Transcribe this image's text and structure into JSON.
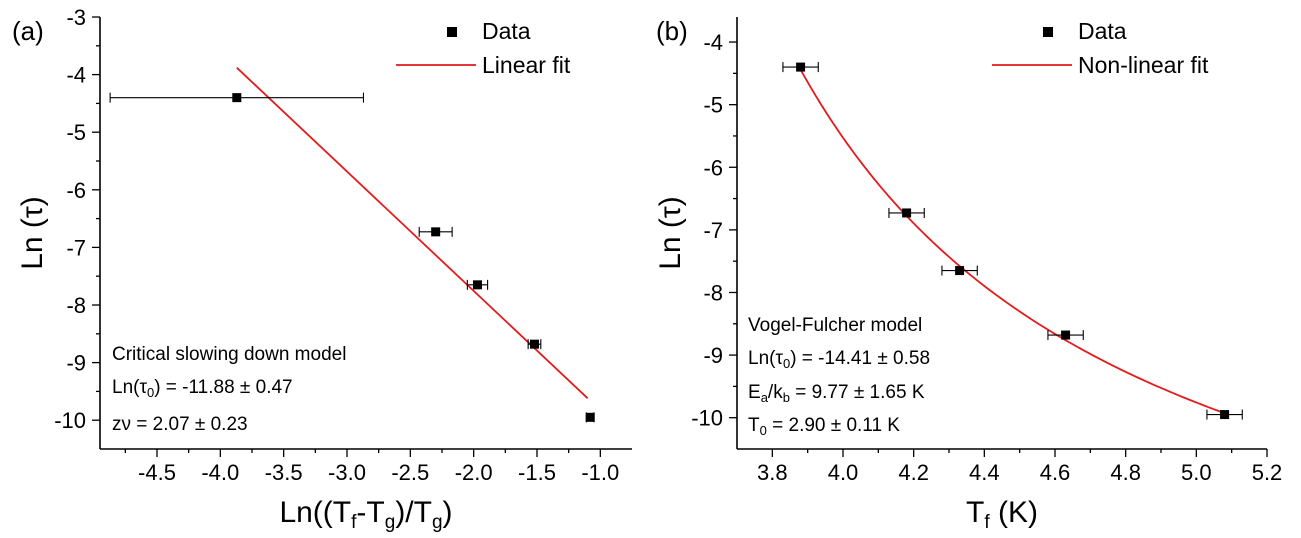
{
  "chart_data": [
    {
      "type": "scatter",
      "panel_label": "(a)",
      "ylabel": "Ln (τ)",
      "xlabel_parts": [
        "Ln((T",
        "f",
        "-T",
        "g",
        ")/T",
        "g",
        ")"
      ],
      "xlim": [
        -4.95,
        -0.75
      ],
      "ylim": [
        -10.5,
        -3.0
      ],
      "x_ticks": [
        -4.5,
        -4.0,
        -3.5,
        -3.0,
        -2.5,
        -2.0,
        -1.5,
        -1.0
      ],
      "x_tick_labels": [
        "-4.5",
        "-4.0",
        "-3.5",
        "-3.0",
        "-2.5",
        "-2.0",
        "-1.5",
        "-1.0"
      ],
      "y_ticks": [
        -10,
        -9,
        -8,
        -7,
        -6,
        -5,
        -4,
        -3
      ],
      "y_tick_labels": [
        "-10",
        "-9",
        "-8",
        "-7",
        "-6",
        "-5",
        "-4",
        "-3"
      ],
      "series": [
        {
          "name": "Data",
          "x": [
            -3.87,
            -2.3,
            -1.97,
            -1.52,
            -1.08
          ],
          "y": [
            -4.4,
            -6.73,
            -7.65,
            -8.68,
            -9.95
          ],
          "xerr": [
            1.0,
            0.13,
            0.08,
            0.05,
            0.03
          ]
        },
        {
          "name": "Linear fit",
          "line": [
            [
              -3.87,
              -3.88
            ],
            [
              -1.1,
              -9.62
            ]
          ]
        }
      ],
      "legend": {
        "placement": "top-right",
        "entries": [
          "Data",
          "Linear fit"
        ]
      },
      "annotations": [
        {
          "text": "Critical slowing down model"
        },
        {
          "parts": [
            "Ln(τ",
            "0",
            ") = -11.88 ± 0.47"
          ]
        },
        {
          "text": "zν = 2.07 ± 0.23"
        }
      ]
    },
    {
      "type": "scatter",
      "panel_label": "(b)",
      "ylabel": "Ln (τ)",
      "xlabel_parts": [
        "T",
        "f",
        " (K)"
      ],
      "xlim": [
        3.7,
        5.2
      ],
      "ylim": [
        -10.5,
        -3.6
      ],
      "x_ticks": [
        3.8,
        4.0,
        4.2,
        4.4,
        4.6,
        4.8,
        5.0,
        5.2
      ],
      "x_tick_labels": [
        "3.8",
        "4.0",
        "4.2",
        "4.4",
        "4.6",
        "4.8",
        "5.0",
        "5.2"
      ],
      "y_ticks": [
        -10,
        -9,
        -8,
        -7,
        -6,
        -5,
        -4
      ],
      "y_tick_labels": [
        "-10",
        "-9",
        "-8",
        "-7",
        "-6",
        "-5",
        "-4"
      ],
      "series": [
        {
          "name": "Data",
          "x": [
            3.88,
            4.18,
            4.33,
            4.63,
            5.08
          ],
          "y": [
            -4.4,
            -6.73,
            -7.65,
            -8.68,
            -9.95
          ],
          "xerr": [
            0.05,
            0.05,
            0.05,
            0.05,
            0.05
          ]
        },
        {
          "name": "Non-linear fit",
          "model": {
            "ln_tau0": -14.41,
            "Ea_over_kb": 9.77,
            "T0": 2.9
          },
          "x_range": [
            3.88,
            5.08
          ]
        }
      ],
      "legend": {
        "placement": "top-right",
        "entries": [
          "Data",
          "Non-linear fit"
        ]
      },
      "annotations": [
        {
          "text": "Vogel-Fulcher model"
        },
        {
          "parts": [
            "Ln(τ",
            "0",
            ") = -14.41 ± 0.58"
          ]
        },
        {
          "parts": [
            "E",
            "a",
            "/k",
            "b",
            " = 9.77 ± 1.65 K"
          ]
        },
        {
          "parts": [
            "T",
            "0",
            " = 2.90 ± 0.11 K"
          ]
        }
      ]
    }
  ]
}
